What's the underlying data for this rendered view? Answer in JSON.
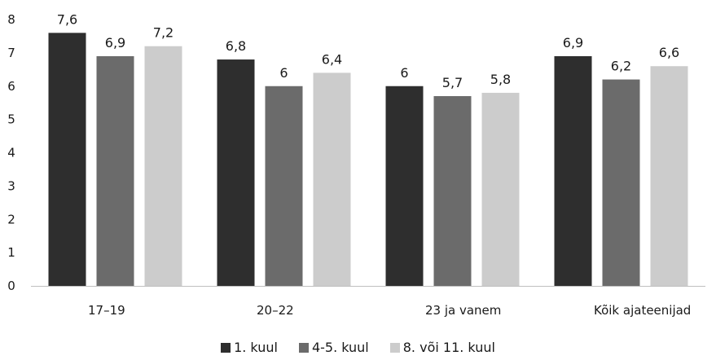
{
  "chart_data": {
    "type": "bar",
    "categories": [
      "17–19",
      "20–22",
      "23 ja vanem",
      "Kõik ajateenijad"
    ],
    "series": [
      {
        "name": "1. kuul",
        "values": [
          7.6,
          6.8,
          6,
          6.9
        ],
        "labels": [
          "7,6",
          "6,8",
          "6",
          "6,9"
        ],
        "color": "#2e2e2e"
      },
      {
        "name": "4-5. kuul",
        "values": [
          6.9,
          6,
          5.7,
          6.2
        ],
        "labels": [
          "6,9",
          "6",
          "5,7",
          "6,2"
        ],
        "color": "#6b6b6b"
      },
      {
        "name": "8. või 11. kuul",
        "values": [
          7.2,
          6.4,
          5.8,
          6.6
        ],
        "labels": [
          "7,2",
          "6,4",
          "5,8",
          "6,6"
        ],
        "color": "#cccccc"
      }
    ],
    "yticks": [
      "0",
      "1",
      "2",
      "3",
      "4",
      "5",
      "6",
      "7",
      "8"
    ],
    "ylim": [
      0,
      8
    ],
    "grid": false,
    "legend_position": "bottom"
  }
}
